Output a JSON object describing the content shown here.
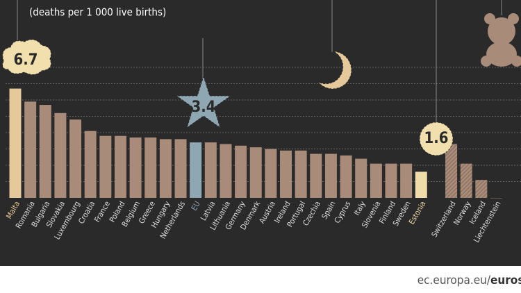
{
  "chart_data": {
    "type": "bar",
    "subtitle": "(deaths per 1 000 live births)",
    "categories": [
      "Malta",
      "Romania",
      "Bulgaria",
      "Slovakia",
      "Luxembourg",
      "Croatia",
      "France",
      "Poland",
      "Belgium",
      "Greece",
      "Hungary",
      "Netherlands",
      "EU",
      "Latvia",
      "Lithuania",
      "Germany",
      "Denmark",
      "Austria",
      "Ireland",
      "Portugal",
      "Czechia",
      "Spain",
      "Cyprus",
      "Italy",
      "Slovenia",
      "Finland",
      "Sweden",
      "Estonia",
      null,
      "Switzerland",
      "Norway",
      "Iceland",
      "Liechtenstein"
    ],
    "values": [
      6.7,
      5.9,
      5.7,
      5.2,
      4.8,
      4.1,
      3.8,
      3.8,
      3.7,
      3.7,
      3.6,
      3.6,
      3.4,
      3.4,
      3.3,
      3.2,
      3.1,
      3.0,
      2.9,
      2.9,
      2.7,
      2.7,
      2.6,
      2.4,
      2.1,
      2.1,
      2.1,
      1.6,
      null,
      3.3,
      2.1,
      1.1,
      0
    ],
    "colors": [
      "#e6c99a",
      "#a88b78",
      "#a88b78",
      "#a88b78",
      "#a88b78",
      "#a88b78",
      "#a88b78",
      "#a88b78",
      "#a88b78",
      "#a88b78",
      "#a88b78",
      "#a88b78",
      "#8fa7b3",
      "#a88b78",
      "#a88b78",
      "#a88b78",
      "#a88b78",
      "#a88b78",
      "#a88b78",
      "#a88b78",
      "#a88b78",
      "#a88b78",
      "#a88b78",
      "#a88b78",
      "#a88b78",
      "#a88b78",
      "#a88b78",
      "#f0dca8",
      null,
      "hatch",
      "hatch",
      "hatch",
      "hatch"
    ],
    "ylim": [
      0,
      8
    ],
    "yticks": [
      1,
      2,
      3,
      4,
      5,
      6,
      7,
      8
    ],
    "grid": true,
    "source": "ec.europa.eu/",
    "source_bold": "euros"
  }
}
